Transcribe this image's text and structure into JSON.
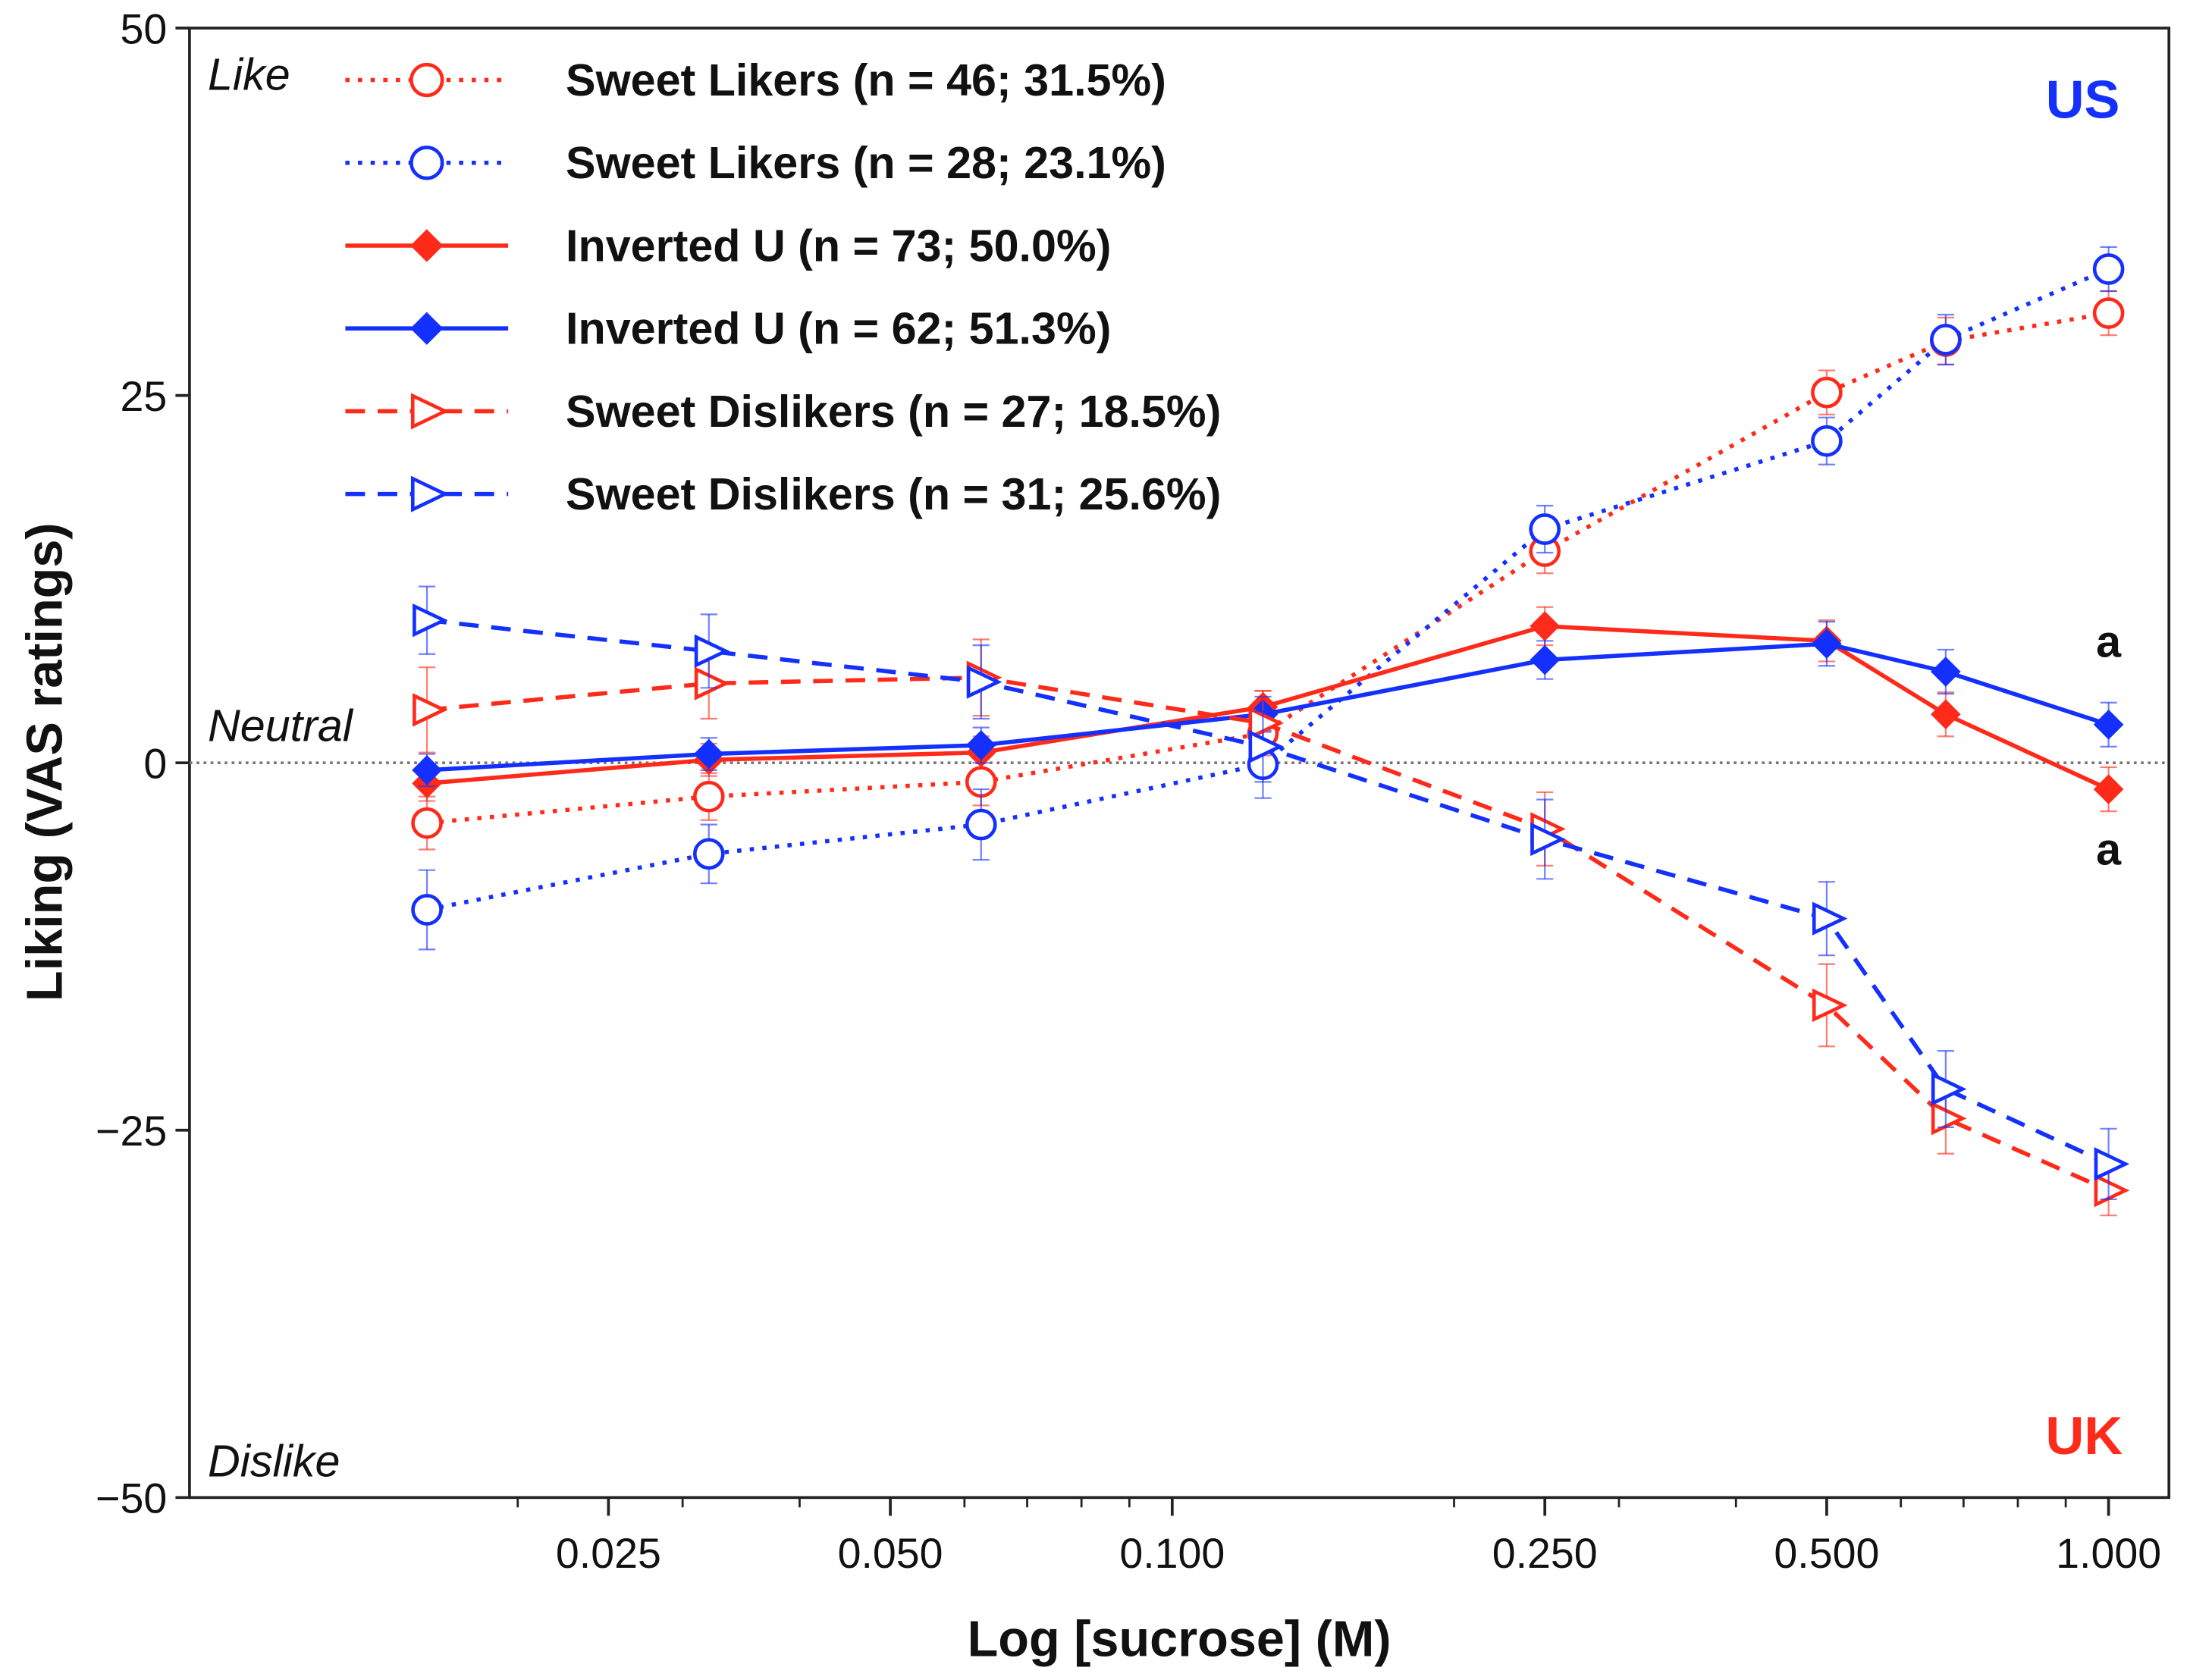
{
  "chart_data": {
    "type": "line",
    "title": "",
    "xlabel": "Log [sucrose] (M)",
    "ylabel": "Liking (VAS ratings)",
    "xscale": "log",
    "xlim": [
      0.0115,
      1.2
    ],
    "ylim": [
      -50,
      50
    ],
    "xticks": [
      0.025,
      0.05,
      0.1,
      0.25,
      0.5,
      1.0
    ],
    "xtick_labels": [
      "0.025",
      "0.050",
      "0.100",
      "0.250",
      "0.500",
      "1.000"
    ],
    "yticks": [
      -50,
      -25,
      0,
      25,
      50
    ],
    "ytick_labels": [
      "−50",
      "−25",
      "0",
      "25",
      "50"
    ],
    "x": [
      0.016,
      0.032,
      0.0625,
      0.125,
      0.25,
      0.5,
      0.67,
      1.0
    ],
    "reference_line": 0,
    "annotations": {
      "like": "Like",
      "neutral": "Neutral",
      "dislike": "Dislike",
      "us": "US",
      "uk": "UK",
      "sig_upper": "a",
      "sig_lower": "a"
    },
    "colors": {
      "uk": "#ff2a1a",
      "us": "#1430ff"
    },
    "legend_position": "top-left",
    "series": [
      {
        "name": "Sweet Likers (n = 46; 31.5%)",
        "group": "UK",
        "color": "#ff2a1a",
        "style": "dotted",
        "marker": "circle-open",
        "values": [
          -4.1,
          -2.3,
          -1.3,
          2.0,
          14.4,
          25.2,
          28.7,
          30.6
        ],
        "err": [
          1.8,
          1.6,
          1.6,
          1.6,
          1.5,
          1.5,
          1.6,
          1.5
        ]
      },
      {
        "name": "Sweet Likers (n = 28; 23.1%)",
        "group": "US",
        "color": "#1430ff",
        "style": "dotted",
        "marker": "circle-open",
        "values": [
          -10.0,
          -6.2,
          -4.2,
          -0.1,
          15.9,
          21.9,
          28.8,
          33.6
        ],
        "err": [
          2.7,
          2.0,
          2.4,
          2.3,
          1.6,
          1.6,
          1.7,
          1.5
        ]
      },
      {
        "name": "Inverted U (n = 73; 50.0%)",
        "group": "UK",
        "color": "#ff2a1a",
        "style": "solid",
        "marker": "diamond",
        "values": [
          -1.4,
          0.2,
          0.7,
          3.8,
          9.3,
          8.3,
          3.3,
          -1.8
        ],
        "err": [
          1.2,
          1.1,
          1.1,
          1.1,
          1.3,
          1.4,
          1.5,
          1.5
        ]
      },
      {
        "name": "Inverted U (n = 62; 51.3%)",
        "group": "US",
        "color": "#1430ff",
        "style": "solid",
        "marker": "diamond",
        "values": [
          -0.5,
          0.6,
          1.2,
          3.3,
          7.0,
          8.1,
          6.2,
          2.6
        ],
        "err": [
          1.1,
          1.1,
          1.2,
          1.2,
          1.3,
          1.5,
          1.5,
          1.5
        ]
      },
      {
        "name": "Sweet Dislikers (n = 27; 18.5%)",
        "group": "UK",
        "color": "#ff2a1a",
        "style": "dashed",
        "marker": "triangle-right-open",
        "values": [
          3.6,
          5.4,
          5.8,
          2.7,
          -4.5,
          -16.5,
          -24.2,
          -29.1
        ],
        "err": [
          2.9,
          2.4,
          2.6,
          2.2,
          2.5,
          2.8,
          2.4,
          1.7
        ]
      },
      {
        "name": "Sweet Dislikers (n = 31; 25.6%)",
        "group": "US",
        "color": "#1430ff",
        "style": "dashed",
        "marker": "triangle-right-open",
        "values": [
          9.7,
          7.6,
          5.5,
          1.1,
          -5.2,
          -10.6,
          -22.2,
          -27.3
        ],
        "err": [
          2.3,
          2.5,
          2.5,
          2.4,
          2.7,
          2.5,
          2.6,
          2.4
        ]
      }
    ]
  }
}
